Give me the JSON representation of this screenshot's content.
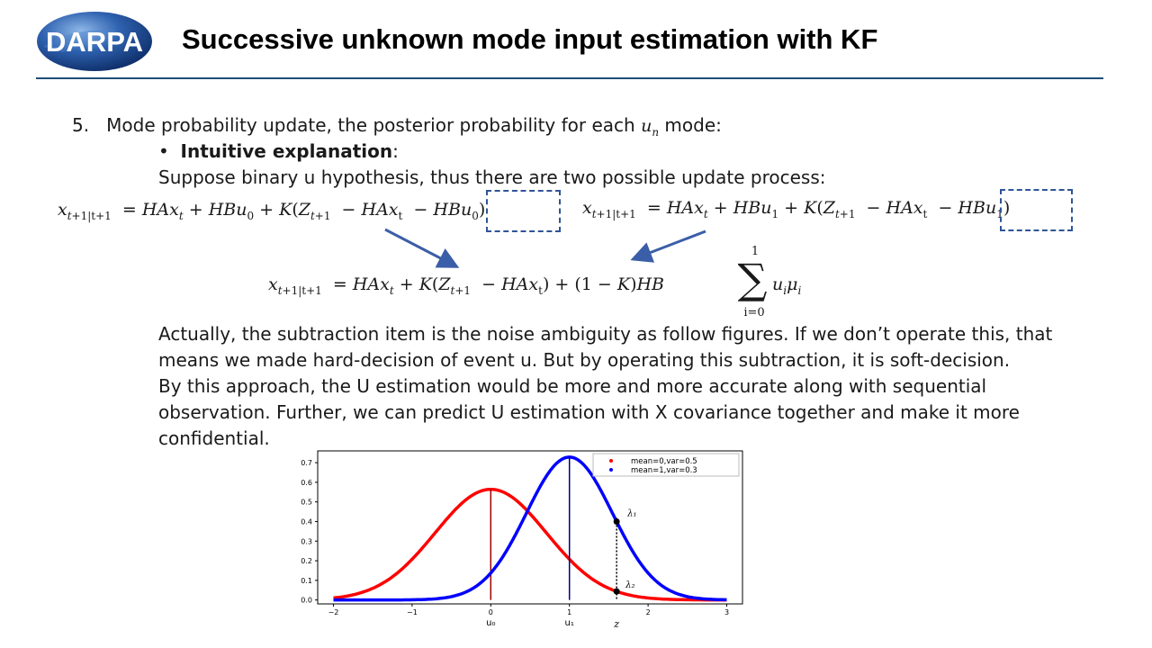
{
  "header": {
    "logo_text": "DARPA",
    "title": "Successive unknown mode input estimation with KF"
  },
  "content": {
    "item_number": "5.",
    "item_text": "Mode probability update, the posterior probability for each",
    "item_var": "u",
    "item_var_sub": "n",
    "item_text_end": "mode:",
    "bullet_label": "Intuitive explanation",
    "bullet_colon": ":",
    "suppose_text": "Suppose binary u hypothesis, thus there are two possible update process:",
    "paragraph": [
      "Actually, the subtraction item is the noise ambiguity as follow figures. If we don’t operate this, that",
      "means we made hard-decision of event u. But by operating this subtraction, it is soft-decision.",
      "By this approach, the U estimation would be more and more accurate along with sequential",
      "observation. Further, we can predict U estimation with X covariance together and make it more",
      "confidential."
    ]
  },
  "equations": {
    "eq_left": "x_{t+1|t+1} = HAx_t + HBu_0 + K(Z_{t+1} − HAx_t − HBu_0)",
    "eq_right": "x_{t+1|t+1} = HAx_t + HBu_1 + K(Z_{t+1} − HAx_t − HBu_1)",
    "eq_combined": "x_{t+1|t+1} = HAx_t + K(Z_{t+1} − HAx_t) + (1 − K)HB Σ_{i=0}^{1} u_i μ_i",
    "sum_upper": "1",
    "sum_lower": "i=0"
  },
  "colors": {
    "rule": "#1f4e79",
    "dashed_box": "#2f5496",
    "arrow": "#3b5ea8",
    "curve_mean0": "#ff0000",
    "curve_mean1": "#0000ff"
  },
  "chart_data": {
    "type": "line",
    "series": [
      {
        "name": "mean=0,var=0.5",
        "mean": 0,
        "var": 0.5,
        "color": "#ff0000"
      },
      {
        "name": "mean=1,var=0.3",
        "mean": 1,
        "var": 0.3,
        "color": "#0000ff"
      }
    ],
    "xlim": [
      -2.2,
      3.2
    ],
    "ylim": [
      -0.02,
      0.76
    ],
    "xticks": [
      -2,
      -1,
      0,
      1,
      2,
      3
    ],
    "xtick_labels": [
      "−2",
      "−1",
      "0",
      "1",
      "2",
      "3"
    ],
    "yticks": [
      0.0,
      0.1,
      0.2,
      0.3,
      0.4,
      0.5,
      0.6,
      0.7
    ],
    "ytick_labels": [
      "0.0",
      "0.1",
      "0.2",
      "0.3",
      "0.4",
      "0.5",
      "0.6",
      "0.7"
    ],
    "z_value": 1.6,
    "annotations": {
      "u0": "u₀",
      "u1": "u₁",
      "z": "z",
      "lambda1": "λ₁",
      "lambda2": "λ₂"
    },
    "legend_position": "top-right"
  }
}
